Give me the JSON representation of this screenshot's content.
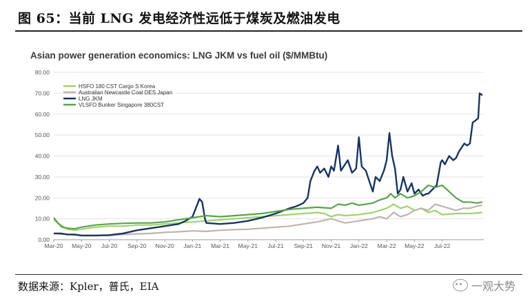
{
  "figure": {
    "title": "图 65：当前 LNG 发电经济性远低于煤炭及燃油发电",
    "source": "数据来源：Kpler，普氏，EIA",
    "watermark": "一观大势"
  },
  "chart_data": {
    "type": "line",
    "title": "Asian power generation economics: LNG JKM vs fuel oil ($/MMBtu)",
    "xlabel": "",
    "ylabel": "",
    "ylim": [
      0,
      80
    ],
    "yticks": [
      "0.00",
      "10.00",
      "20.00",
      "30.00",
      "40.00",
      "50.00",
      "60.00",
      "70.00",
      "80.00"
    ],
    "xlim": [
      0,
      31
    ],
    "xticks": [
      {
        "label": "Mar-20",
        "x": 0
      },
      {
        "label": "May-20",
        "x": 2
      },
      {
        "label": "Jul-20",
        "x": 4
      },
      {
        "label": "Sep-20",
        "x": 6
      },
      {
        "label": "Nov-20",
        "x": 8
      },
      {
        "label": "Jan-21",
        "x": 10
      },
      {
        "label": "Mar-21",
        "x": 12
      },
      {
        "label": "May-21",
        "x": 14
      },
      {
        "label": "Jul-21",
        "x": 16
      },
      {
        "label": "Sep-21",
        "x": 18
      },
      {
        "label": "Nov-21",
        "x": 20
      },
      {
        "label": "Jan-22",
        "x": 22
      },
      {
        "label": "Mar-22",
        "x": 24
      },
      {
        "label": "May-22",
        "x": 26
      },
      {
        "label": "Jul-22",
        "x": 28
      }
    ],
    "grid": true,
    "legend_position": "top-left",
    "series": [
      {
        "name": "HSFO 180 CST Cargo S Korea",
        "color": "#9ed36a",
        "points": [
          [
            0,
            9.5
          ],
          [
            0.5,
            7
          ],
          [
            1,
            5
          ],
          [
            1.5,
            4.5
          ],
          [
            2,
            5
          ],
          [
            3,
            6
          ],
          [
            4,
            6.5
          ],
          [
            5,
            6.5
          ],
          [
            6,
            7
          ],
          [
            7,
            7
          ],
          [
            8,
            7.5
          ],
          [
            9,
            8
          ],
          [
            10,
            8.5
          ],
          [
            11,
            9
          ],
          [
            12,
            9.5
          ],
          [
            13,
            10
          ],
          [
            14,
            10.5
          ],
          [
            15,
            11
          ],
          [
            16,
            11.5
          ],
          [
            17,
            12
          ],
          [
            18,
            12.5
          ],
          [
            19,
            13
          ],
          [
            19.5,
            12.5
          ],
          [
            20,
            11
          ],
          [
            20.5,
            12
          ],
          [
            21,
            11.5
          ],
          [
            22,
            12
          ],
          [
            23,
            13
          ],
          [
            23.5,
            14
          ],
          [
            24,
            15
          ],
          [
            24.5,
            17
          ],
          [
            25,
            15
          ],
          [
            25.5,
            16
          ],
          [
            26,
            14
          ],
          [
            26.5,
            15
          ],
          [
            27,
            13
          ],
          [
            27.5,
            14
          ],
          [
            28,
            12
          ],
          [
            29,
            12.5
          ],
          [
            30,
            12.5
          ],
          [
            30.9,
            13
          ]
        ]
      },
      {
        "name": "Australian Newcastle Coal DES Japan",
        "color": "#bdb4ad",
        "points": [
          [
            0,
            3
          ],
          [
            1,
            2.5
          ],
          [
            2,
            2
          ],
          [
            3,
            2
          ],
          [
            4,
            2
          ],
          [
            5,
            2.5
          ],
          [
            6,
            2.8
          ],
          [
            7,
            3
          ],
          [
            8,
            3.5
          ],
          [
            9,
            3.8
          ],
          [
            10,
            4.2
          ],
          [
            11,
            4
          ],
          [
            12,
            4.5
          ],
          [
            13,
            4.8
          ],
          [
            14,
            5
          ],
          [
            15,
            5.5
          ],
          [
            16,
            6
          ],
          [
            17,
            6.5
          ],
          [
            18,
            7.5
          ],
          [
            19,
            8.5
          ],
          [
            20,
            10
          ],
          [
            20.5,
            9
          ],
          [
            21,
            8
          ],
          [
            21.5,
            8.5
          ],
          [
            22,
            9
          ],
          [
            23,
            10
          ],
          [
            23.5,
            11
          ],
          [
            24,
            10
          ],
          [
            24.5,
            13
          ],
          [
            25,
            11
          ],
          [
            25.5,
            12
          ],
          [
            26,
            14
          ],
          [
            26.5,
            15
          ],
          [
            27,
            14
          ],
          [
            27.5,
            17
          ],
          [
            28,
            16
          ],
          [
            28.5,
            15
          ],
          [
            29,
            14
          ],
          [
            29.5,
            15
          ],
          [
            30,
            15
          ],
          [
            30.5,
            16
          ],
          [
            30.9,
            16.5
          ]
        ]
      },
      {
        "name": "LNG JKM",
        "color": "#17335e",
        "points": [
          [
            0,
            3
          ],
          [
            0.5,
            3
          ],
          [
            1,
            2.5
          ],
          [
            1.5,
            2.5
          ],
          [
            2,
            2
          ],
          [
            3,
            2
          ],
          [
            4,
            2.2
          ],
          [
            5,
            3
          ],
          [
            6,
            4.5
          ],
          [
            7,
            5.5
          ],
          [
            8,
            6.5
          ],
          [
            9,
            7.5
          ],
          [
            9.5,
            9
          ],
          [
            10,
            11
          ],
          [
            10.3,
            16
          ],
          [
            10.5,
            19.5
          ],
          [
            10.7,
            18
          ],
          [
            10.9,
            10
          ],
          [
            11,
            8
          ],
          [
            12,
            7.5
          ],
          [
            13,
            8
          ],
          [
            14,
            9
          ],
          [
            15,
            10.5
          ],
          [
            16,
            12.5
          ],
          [
            17,
            15
          ],
          [
            17.5,
            16
          ],
          [
            18,
            17.5
          ],
          [
            18.3,
            20
          ],
          [
            18.5,
            28
          ],
          [
            18.8,
            33
          ],
          [
            19,
            35
          ],
          [
            19.2,
            32
          ],
          [
            19.5,
            34
          ],
          [
            19.8,
            30
          ],
          [
            20,
            35
          ],
          [
            20.2,
            33
          ],
          [
            20.5,
            45
          ],
          [
            20.7,
            33
          ],
          [
            21,
            36
          ],
          [
            21.2,
            38
          ],
          [
            21.5,
            32
          ],
          [
            21.8,
            34
          ],
          [
            22,
            49
          ],
          [
            22.2,
            35
          ],
          [
            22.5,
            33
          ],
          [
            22.8,
            27
          ],
          [
            23,
            23
          ],
          [
            23.2,
            30
          ],
          [
            23.5,
            28
          ],
          [
            23.8,
            33
          ],
          [
            24,
            38
          ],
          [
            24.2,
            51
          ],
          [
            24.4,
            40
          ],
          [
            24.6,
            34
          ],
          [
            24.8,
            22
          ],
          [
            25,
            24
          ],
          [
            25.2,
            30
          ],
          [
            25.5,
            23
          ],
          [
            25.8,
            27
          ],
          [
            26,
            22
          ],
          [
            26.3,
            24
          ],
          [
            26.6,
            21
          ],
          [
            26.9,
            22
          ],
          [
            27,
            22
          ],
          [
            27.3,
            24
          ],
          [
            27.6,
            26
          ],
          [
            27.9,
            37
          ],
          [
            28,
            38
          ],
          [
            28.2,
            36
          ],
          [
            28.5,
            40
          ],
          [
            28.8,
            38
          ],
          [
            29,
            39
          ],
          [
            29.2,
            42
          ],
          [
            29.4,
            44
          ],
          [
            29.6,
            46
          ],
          [
            29.8,
            45
          ],
          [
            30,
            46
          ],
          [
            30.2,
            56
          ],
          [
            30.4,
            57
          ],
          [
            30.6,
            58
          ],
          [
            30.7,
            70
          ],
          [
            30.9,
            69
          ]
        ]
      },
      {
        "name": "VLSFO Bunker Singapore 380CST",
        "color": "#58a24c",
        "points": [
          [
            0,
            10.5
          ],
          [
            0.3,
            8
          ],
          [
            0.6,
            6
          ],
          [
            1,
            5.5
          ],
          [
            1.5,
            5.2
          ],
          [
            2,
            6
          ],
          [
            3,
            7
          ],
          [
            4,
            7.5
          ],
          [
            5,
            7.8
          ],
          [
            6,
            8
          ],
          [
            7,
            8
          ],
          [
            8,
            8.5
          ],
          [
            9,
            9.5
          ],
          [
            10,
            10.5
          ],
          [
            11,
            11.5
          ],
          [
            12,
            11
          ],
          [
            13,
            11.5
          ],
          [
            14,
            12
          ],
          [
            15,
            12.5
          ],
          [
            16,
            13.5
          ],
          [
            17,
            14.5
          ],
          [
            18,
            15
          ],
          [
            19,
            15.5
          ],
          [
            20,
            15
          ],
          [
            20.5,
            17
          ],
          [
            21,
            16.5
          ],
          [
            21.5,
            17.5
          ],
          [
            22,
            16.5
          ],
          [
            23,
            17.5
          ],
          [
            23.5,
            19
          ],
          [
            24,
            20
          ],
          [
            24.3,
            22
          ],
          [
            24.6,
            20
          ],
          [
            25,
            22
          ],
          [
            25.5,
            20
          ],
          [
            26,
            21
          ],
          [
            26.5,
            23
          ],
          [
            27,
            26
          ],
          [
            27.5,
            25
          ],
          [
            28,
            26
          ],
          [
            28.5,
            23
          ],
          [
            29,
            20
          ],
          [
            29.5,
            18
          ],
          [
            30,
            18
          ],
          [
            30.5,
            17.5
          ],
          [
            30.9,
            18
          ]
        ]
      }
    ]
  }
}
